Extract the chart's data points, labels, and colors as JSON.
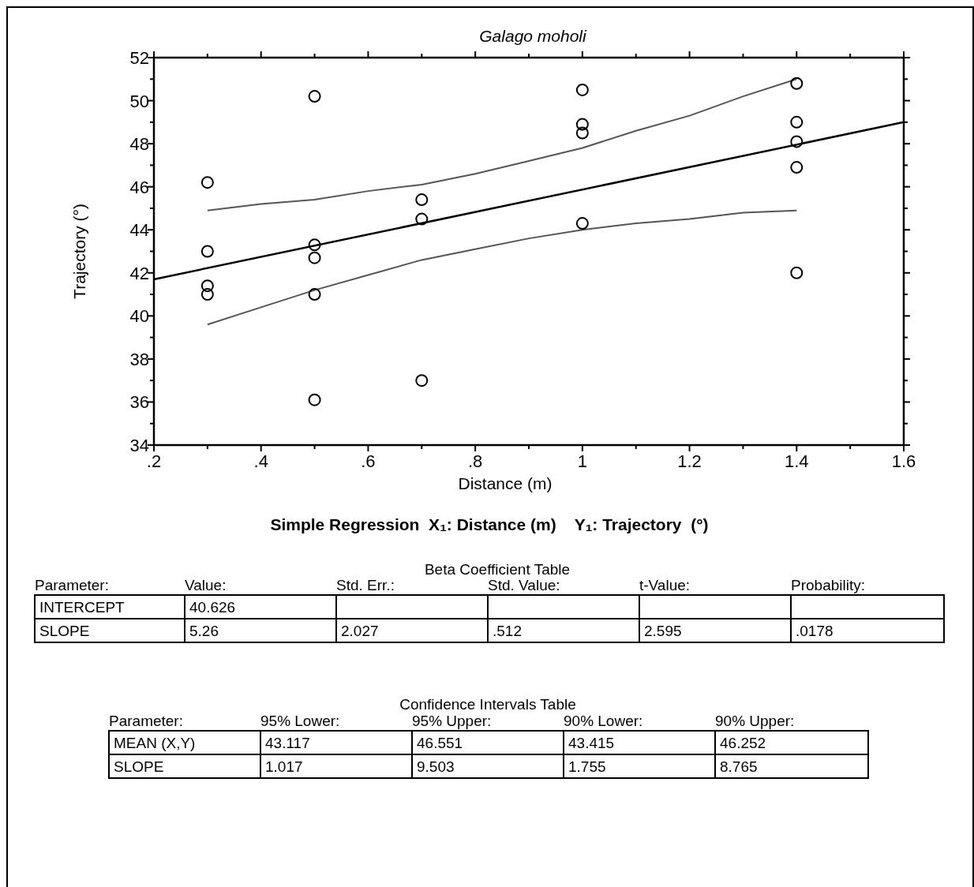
{
  "chart_data": {
    "type": "scatter",
    "title": "Galago moholi",
    "xlabel": "Distance (m)",
    "ylabel": "Trajectory (°)",
    "xlim": [
      0.2,
      1.6
    ],
    "ylim": [
      34,
      52
    ],
    "xticks": [
      {
        "value": 0.2,
        "label": ".2"
      },
      {
        "value": 0.3,
        "label": null
      },
      {
        "value": 0.4,
        "label": ".4"
      },
      {
        "value": 0.5,
        "label": null
      },
      {
        "value": 0.6,
        "label": ".6"
      },
      {
        "value": 0.7,
        "label": null
      },
      {
        "value": 0.8,
        "label": ".8"
      },
      {
        "value": 0.9,
        "label": null
      },
      1,
      {
        "value": 1.1,
        "label": null
      },
      1.2,
      {
        "value": 1.3,
        "label": null
      },
      1.4,
      {
        "value": 1.5,
        "label": null
      },
      1.6
    ],
    "yticks": [
      34,
      {
        "value": 35,
        "label": null
      },
      36,
      {
        "value": 37,
        "label": null
      },
      38,
      {
        "value": 39,
        "label": null
      },
      40,
      {
        "value": 41,
        "label": null
      },
      42,
      {
        "value": 43,
        "label": null
      },
      44,
      {
        "value": 45,
        "label": null
      },
      46,
      {
        "value": 47,
        "label": null
      },
      48,
      {
        "value": 49,
        "label": null
      },
      50,
      {
        "value": 51,
        "label": null
      },
      52
    ],
    "grid": false,
    "marker": "circle",
    "series": [
      {
        "color": "#000000",
        "x": [
          0.3,
          0.3,
          0.3,
          0.3,
          0.5,
          0.5,
          0.5,
          0.5,
          0.5,
          0.7,
          0.7,
          0.7,
          1,
          1,
          1,
          1,
          1.4,
          1.4,
          1.4,
          1.4,
          1.4
        ],
        "values": [
          46.2,
          43.0,
          41.4,
          41.0,
          50.2,
          43.3,
          42.7,
          41.0,
          36.1,
          45.4,
          44.5,
          37.0,
          50.5,
          48.9,
          48.5,
          44.3,
          50.8,
          49.0,
          48.1,
          46.9,
          42.0
        ]
      },
      {
        "type": "line",
        "marker": "none",
        "color": "#000000",
        "x": [
          0.2,
          1.6
        ],
        "values": [
          41.7,
          49.0
        ]
      },
      {
        "type": "line",
        "marker": "none",
        "color": "#555555",
        "x": [
          0.3,
          0.4,
          0.5,
          0.6,
          0.7,
          0.8,
          0.9,
          1.0,
          1.1,
          1.2,
          1.3,
          1.4
        ],
        "values": [
          44.9,
          45.2,
          45.4,
          45.8,
          46.1,
          46.6,
          47.2,
          47.8,
          48.6,
          49.3,
          50.2,
          51.0
        ]
      },
      {
        "type": "line",
        "marker": "none",
        "color": "#555555",
        "x": [
          0.3,
          0.4,
          0.5,
          0.6,
          0.7,
          0.8,
          0.9,
          1.0,
          1.1,
          1.2,
          1.3,
          1.4
        ],
        "values": [
          39.6,
          40.4,
          41.2,
          41.9,
          42.6,
          43.1,
          43.6,
          44.0,
          44.3,
          44.5,
          44.8,
          44.9
        ]
      }
    ],
    "annotations": [
      "Simple Regression  X₁: Distance (m)    Y₁: Trajectory  (°)",
      "Beta Coefficient Table",
      "Parameter:",
      "Value:",
      "Std. Err.:",
      "Std. Value:",
      "t-Value:",
      "Probability:",
      "INTERCEPT",
      "40.626",
      "SLOPE",
      "5.26",
      "2.027",
      ".512",
      "2.595",
      ".0178",
      "Confidence Intervals Table",
      "Parameter:",
      "95% Lower:",
      "95% Upper:",
      "90% Lower:",
      "90% Upper:",
      "MEAN (X,Y)",
      "43.117",
      "46.551",
      "43.415",
      "46.252",
      "SLOPE",
      "1.017",
      "9.503",
      "1.755",
      "8.765"
    ]
  }
}
